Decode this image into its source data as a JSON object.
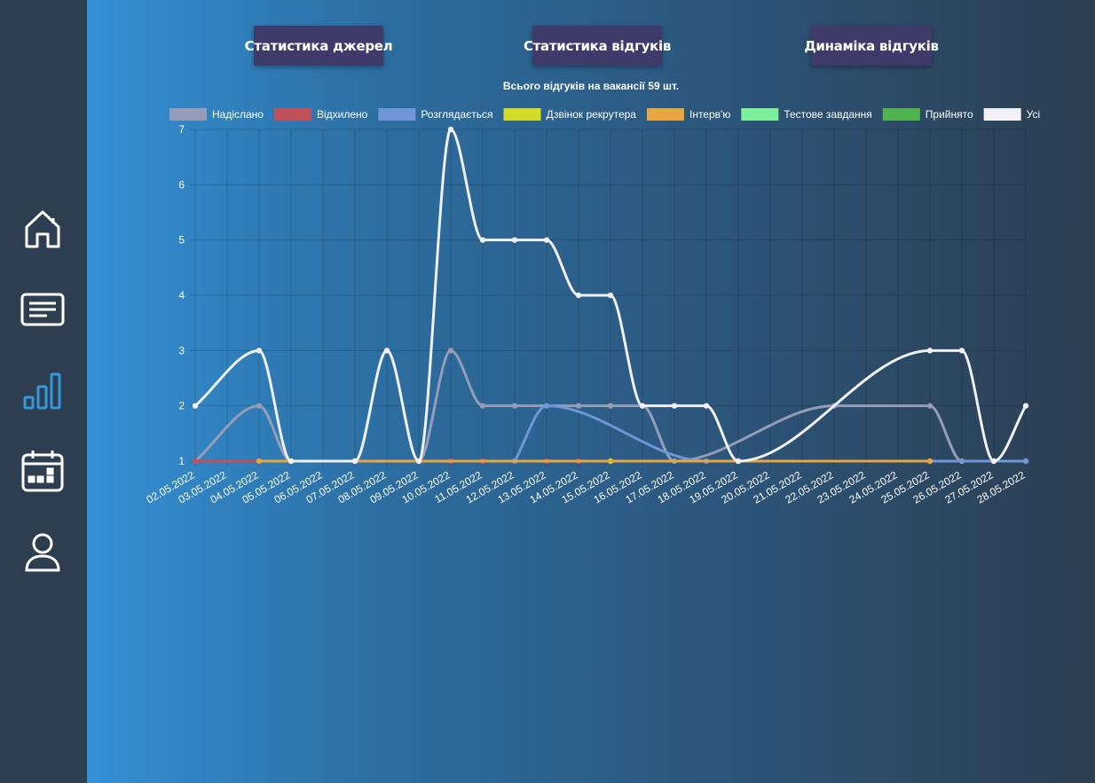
{
  "sidebar": {
    "items": [
      {
        "name": "home-icon",
        "active": false
      },
      {
        "name": "document-list-icon",
        "active": false
      },
      {
        "name": "bar-chart-icon",
        "active": true
      },
      {
        "name": "calendar-icon",
        "active": false
      },
      {
        "name": "user-icon",
        "active": false
      }
    ],
    "icon_color": "#ffffff",
    "active_color": "#3498db"
  },
  "tabs": [
    {
      "label": "Статистика джерел"
    },
    {
      "label": "Статистика відгуків"
    },
    {
      "label": "Динаміка відгуків"
    }
  ],
  "chart_data": {
    "type": "line",
    "title": "Всього відгуків на вакансії 59 шт.",
    "xlabel": "",
    "ylabel": "",
    "ylim": [
      1,
      7
    ],
    "grid": true,
    "legend_position": "top",
    "categories": [
      "02.05.2022",
      "03.05.2022",
      "04.05.2022",
      "05.05.2022",
      "06.05.2022",
      "07.05.2022",
      "08.05.2022",
      "09.05.2022",
      "10.05.2022",
      "11.05.2022",
      "12.05.2022",
      "13.05.2022",
      "14.05.2022",
      "15.05.2022",
      "16.05.2022",
      "17.05.2022",
      "18.05.2022",
      "19.05.2022",
      "20.05.2022",
      "21.05.2022",
      "22.05.2022",
      "23.05.2022",
      "24.05.2022",
      "25.05.2022",
      "26.05.2022",
      "27.05.2022",
      "28.05.2022"
    ],
    "yticks": [
      "1",
      "2",
      "3",
      "4",
      "5",
      "6",
      "7"
    ],
    "series": [
      {
        "name": "Надіслано",
        "color": "#959db8",
        "values": [
          1,
          null,
          2,
          1,
          null,
          1,
          3,
          1,
          3,
          2,
          2,
          2,
          2,
          2,
          2,
          1,
          null,
          null,
          null,
          null,
          2,
          null,
          null,
          2,
          1,
          1,
          1
        ]
      },
      {
        "name": "Відхилено",
        "color": "#c0505a",
        "values": [
          1,
          null,
          null,
          null,
          null,
          1,
          null,
          null,
          1,
          1,
          1,
          1,
          1,
          null,
          null,
          null,
          null,
          null,
          null,
          null,
          null,
          null,
          null,
          null,
          null,
          null,
          null
        ]
      },
      {
        "name": "Розглядається",
        "color": "#6f96d8",
        "values": [
          null,
          null,
          null,
          null,
          null,
          null,
          null,
          null,
          null,
          null,
          1,
          2,
          null,
          null,
          null,
          null,
          1,
          null,
          null,
          null,
          null,
          null,
          null,
          null,
          null,
          null,
          1
        ]
      },
      {
        "name": "Дзвінок рекрутера",
        "color": "#d4dc2a",
        "values": [
          null,
          null,
          null,
          null,
          null,
          null,
          null,
          null,
          null,
          null,
          null,
          null,
          null,
          1,
          null,
          null,
          null,
          1,
          null,
          null,
          null,
          null,
          null,
          null,
          null,
          null,
          null
        ]
      },
      {
        "name": "Інтерв'ю",
        "color": "#e8a642",
        "values": [
          null,
          null,
          1,
          null,
          null,
          null,
          null,
          null,
          null,
          null,
          null,
          null,
          null,
          null,
          null,
          null,
          null,
          null,
          null,
          null,
          null,
          null,
          null,
          1,
          null,
          null,
          null
        ]
      },
      {
        "name": "Тестове завдання",
        "color": "#7df09a",
        "values": [
          null,
          null,
          null,
          null,
          null,
          null,
          null,
          null,
          null,
          null,
          null,
          null,
          null,
          null,
          null,
          null,
          null,
          null,
          null,
          null,
          null,
          null,
          null,
          null,
          null,
          null,
          null
        ]
      },
      {
        "name": "Прийнято",
        "color": "#4fb34f",
        "values": [
          null,
          null,
          null,
          null,
          null,
          null,
          null,
          null,
          null,
          null,
          null,
          null,
          null,
          null,
          null,
          null,
          null,
          null,
          null,
          null,
          null,
          null,
          null,
          null,
          null,
          null,
          null
        ]
      },
      {
        "name": "Усі",
        "color": "#f0f0f5",
        "values": [
          2,
          null,
          3,
          1,
          null,
          1,
          3,
          1,
          7,
          5,
          5,
          5,
          4,
          4,
          2,
          2,
          2,
          1,
          null,
          null,
          null,
          null,
          null,
          3,
          3,
          1,
          2
        ]
      }
    ]
  }
}
